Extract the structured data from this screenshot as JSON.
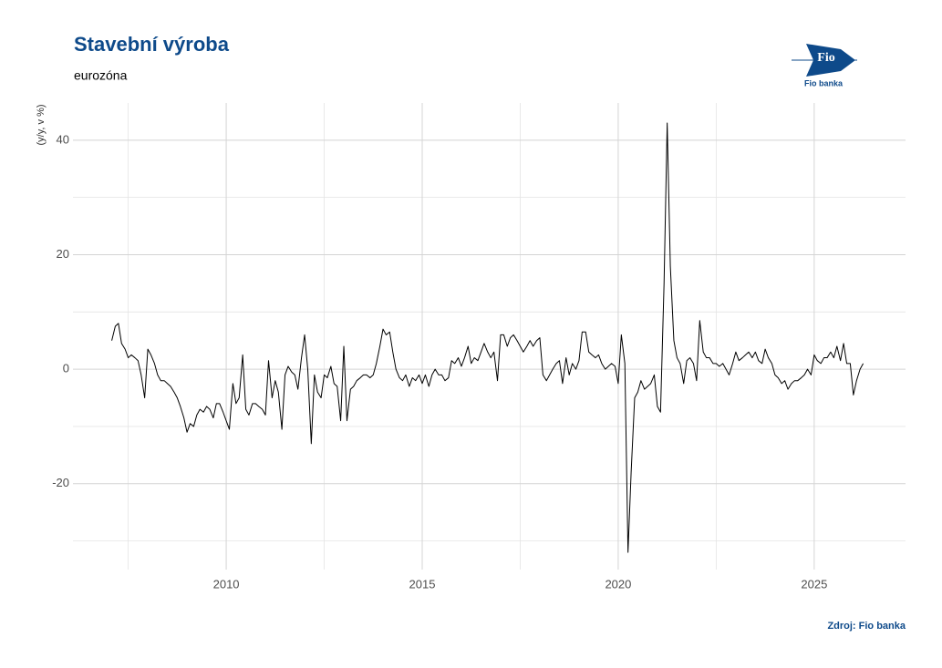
{
  "chart_data": {
    "type": "line",
    "title": "Stavební výroba",
    "subtitle": "eurozóna",
    "y_label": "(y/y, v %)",
    "source": "Zdroj: Fio banka",
    "color": "#000000",
    "grid": true,
    "xlim": [
      2006.09,
      2027.33
    ],
    "ylim": [
      -35,
      46.5
    ],
    "xticks": [
      2010,
      2015,
      2020,
      2025
    ],
    "yticks": [
      -20,
      0,
      20,
      40
    ],
    "x": [
      2007.08,
      2007.17,
      2007.25,
      2007.33,
      2007.42,
      2007.5,
      2007.58,
      2007.67,
      2007.75,
      2007.83,
      2007.92,
      2008.0,
      2008.08,
      2008.17,
      2008.25,
      2008.33,
      2008.42,
      2008.5,
      2008.58,
      2008.67,
      2008.75,
      2008.83,
      2008.92,
      2009.0,
      2009.08,
      2009.17,
      2009.25,
      2009.33,
      2009.42,
      2009.5,
      2009.58,
      2009.67,
      2009.75,
      2009.83,
      2009.92,
      2010.0,
      2010.08,
      2010.17,
      2010.25,
      2010.33,
      2010.42,
      2010.5,
      2010.58,
      2010.67,
      2010.75,
      2010.83,
      2010.92,
      2011.0,
      2011.08,
      2011.17,
      2011.25,
      2011.33,
      2011.42,
      2011.5,
      2011.58,
      2011.67,
      2011.75,
      2011.83,
      2011.92,
      2012.0,
      2012.08,
      2012.17,
      2012.25,
      2012.33,
      2012.42,
      2012.5,
      2012.58,
      2012.67,
      2012.75,
      2012.83,
      2012.92,
      2013.0,
      2013.08,
      2013.17,
      2013.25,
      2013.33,
      2013.42,
      2013.5,
      2013.58,
      2013.67,
      2013.75,
      2013.83,
      2013.92,
      2014.0,
      2014.08,
      2014.17,
      2014.25,
      2014.33,
      2014.42,
      2014.5,
      2014.58,
      2014.67,
      2014.75,
      2014.83,
      2014.92,
      2015.0,
      2015.08,
      2015.17,
      2015.25,
      2015.33,
      2015.42,
      2015.5,
      2015.58,
      2015.67,
      2015.75,
      2015.83,
      2015.92,
      2016.0,
      2016.08,
      2016.17,
      2016.25,
      2016.33,
      2016.42,
      2016.5,
      2016.58,
      2016.67,
      2016.75,
      2016.83,
      2016.92,
      2017.0,
      2017.08,
      2017.17,
      2017.25,
      2017.33,
      2017.42,
      2017.5,
      2017.58,
      2017.67,
      2017.75,
      2017.83,
      2017.92,
      2018.0,
      2018.08,
      2018.17,
      2018.25,
      2018.33,
      2018.42,
      2018.5,
      2018.58,
      2018.67,
      2018.75,
      2018.83,
      2018.92,
      2019.0,
      2019.08,
      2019.17,
      2019.25,
      2019.33,
      2019.42,
      2019.5,
      2019.58,
      2019.67,
      2019.75,
      2019.83,
      2019.92,
      2020.0,
      2020.08,
      2020.17,
      2020.25,
      2020.33,
      2020.42,
      2020.5,
      2020.58,
      2020.67,
      2020.75,
      2020.83,
      2020.92,
      2021.0,
      2021.08,
      2021.17,
      2021.25,
      2021.33,
      2021.42,
      2021.5,
      2021.58,
      2021.67,
      2021.75,
      2021.83,
      2021.92,
      2022.0,
      2022.08,
      2022.17,
      2022.25,
      2022.33,
      2022.42,
      2022.5,
      2022.58,
      2022.67,
      2022.75,
      2022.83,
      2022.92,
      2023.0,
      2023.08,
      2023.17,
      2023.25,
      2023.33,
      2023.42,
      2023.5,
      2023.58,
      2023.67,
      2023.75,
      2023.83,
      2023.92,
      2024.0,
      2024.08,
      2024.17,
      2024.25,
      2024.33,
      2024.42,
      2024.5,
      2024.58,
      2024.67,
      2024.75,
      2024.83,
      2024.92,
      2025.0,
      2025.08,
      2025.17,
      2025.25,
      2025.33,
      2025.42,
      2025.5,
      2025.58,
      2025.67,
      2025.75,
      2025.83,
      2025.92,
      2026.0,
      2026.08,
      2026.17,
      2026.25
    ],
    "values": [
      5,
      7.5,
      8,
      4.5,
      3.5,
      2,
      2.5,
      2,
      1.5,
      -1,
      -5,
      3.5,
      2.5,
      1,
      -1,
      -2,
      -2,
      -2.5,
      -3,
      -4,
      -5,
      -6.5,
      -8.5,
      -11,
      -9.5,
      -10,
      -8,
      -7,
      -7.5,
      -6.5,
      -7,
      -8.5,
      -6,
      -6,
      -7.5,
      -9,
      -10.5,
      -2.5,
      -6,
      -5,
      2.5,
      -7,
      -8,
      -6,
      -6,
      -6.5,
      -7,
      -8,
      1.5,
      -5,
      -2,
      -4,
      -10.5,
      -1,
      0.5,
      -0.5,
      -1,
      -3.5,
      2,
      6,
      0,
      -13,
      -1,
      -4,
      -5,
      -1,
      -1.5,
      0.5,
      -2.5,
      -3,
      -9,
      4,
      -9,
      -3.5,
      -3,
      -2,
      -1.5,
      -1,
      -1,
      -1.5,
      -1,
      1,
      4,
      7,
      6,
      6.5,
      3,
      0,
      -1.5,
      -2,
      -1,
      -3,
      -1.5,
      -2,
      -1,
      -2.5,
      -1,
      -3,
      -1,
      0,
      -1,
      -1,
      -2,
      -1.5,
      1.5,
      1,
      2,
      0.5,
      2,
      4,
      1,
      2,
      1.5,
      3,
      4.5,
      3,
      2,
      3,
      -2,
      6,
      6,
      4,
      5.5,
      6,
      5,
      4,
      3,
      4,
      5,
      4,
      5,
      5.5,
      -1,
      -2,
      -1,
      0,
      1,
      1.5,
      -2.5,
      2,
      -1,
      1,
      0,
      1.5,
      6.5,
      6.5,
      3,
      2.5,
      2,
      2.5,
      1,
      0,
      0.5,
      1,
      0.5,
      -2.5,
      6,
      1,
      -32,
      -18,
      -5,
      -4,
      -2,
      -3.5,
      -3,
      -2.5,
      -1,
      -6.5,
      -7.5,
      15,
      43,
      18,
      5,
      2,
      1,
      -2.5,
      1.5,
      2,
      1,
      -2,
      8.5,
      3,
      2,
      2,
      1,
      1,
      0.5,
      1,
      0,
      -1,
      1,
      3,
      1.5,
      2,
      2.5,
      3,
      2,
      3,
      1.5,
      1,
      3.5,
      2,
      1,
      -1,
      -1.5,
      -2.5,
      -2,
      -3.5,
      -2.5,
      -2,
      -2,
      -1.5,
      -1,
      0,
      -1,
      2.5,
      1.5,
      1,
      2,
      2,
      3,
      2,
      4,
      1.5,
      4.5,
      1,
      1,
      -4.5,
      -2,
      0,
      1
    ]
  },
  "logo": {
    "text": "Fio",
    "caption": "Fio banka"
  }
}
